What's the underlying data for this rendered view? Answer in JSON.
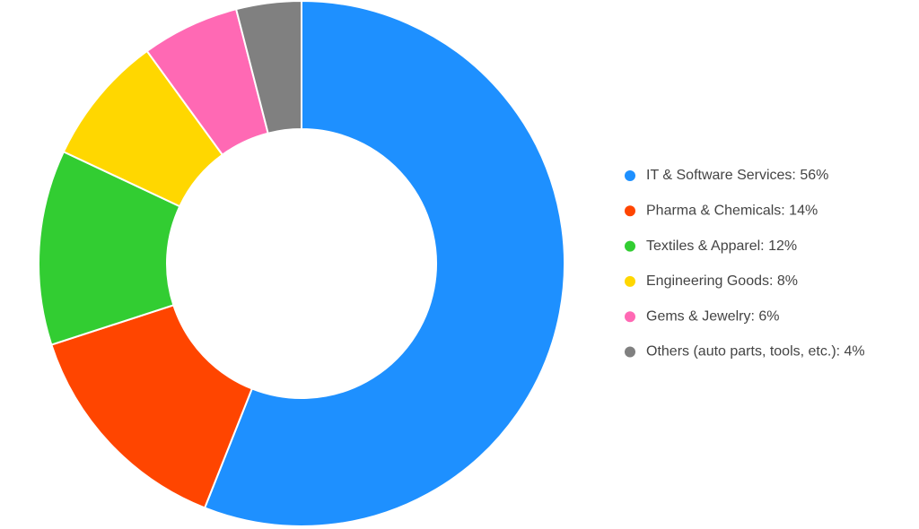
{
  "chart_data": {
    "type": "donut",
    "categories": [
      "IT & Software Services: 56%",
      "Pharma & Chemicals: 14%",
      "Textiles & Apparel: 12%",
      "Engineering Goods: 8%",
      "Gems & Jewelry: 6%",
      "Others (auto parts, tools, etc.): 4%"
    ],
    "values": [
      56,
      14,
      12,
      8,
      6,
      4
    ],
    "colors": [
      "#1e90ff",
      "#ff4500",
      "#32cd32",
      "#ffd700",
      "#ff69b4",
      "#808080"
    ],
    "legend": "right"
  }
}
